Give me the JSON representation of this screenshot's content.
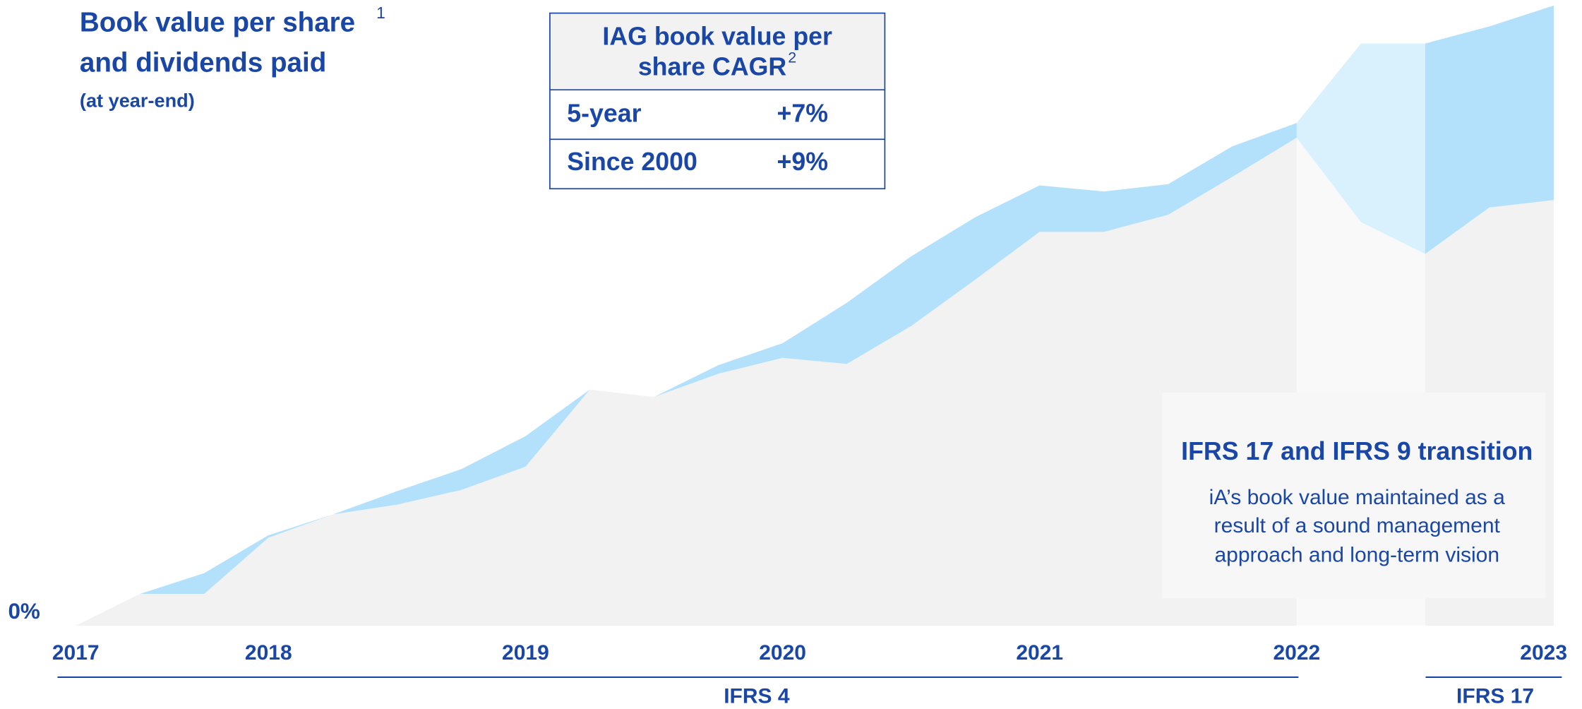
{
  "chart_data": {
    "type": "area",
    "title": "Book value per share",
    "title_note": "1",
    "title_line2": "and dividends paid",
    "subtitle": "(at year-end)",
    "categories": [
      "2017",
      null,
      null,
      "2018",
      null,
      null,
      null,
      "2019",
      null,
      null,
      null,
      "2020",
      null,
      null,
      null,
      "2021",
      null,
      null,
      null,
      "2022",
      null,
      null,
      null,
      "2023"
    ],
    "series": [
      {
        "color": "#f2f2f2",
        "values": [
          0,
          2.6,
          2.6,
          7.2,
          9.1,
          9.9,
          11.1,
          13.0,
          19.3,
          18.7,
          20.6,
          21.9,
          21.4,
          24.5,
          28.3,
          32.2,
          32.2,
          33.6,
          36.7,
          39.9,
          33.0,
          30.4,
          34.2,
          34.8
        ]
      },
      {
        "color": "#b3e1fb",
        "values": [
          0,
          0,
          1.7,
          0.2,
          0,
          1.1,
          1.7,
          2.5,
          0,
          0,
          0.7,
          1.2,
          5.0,
          5.7,
          5.1,
          3.8,
          3.3,
          2.5,
          2.5,
          1.2,
          14.6,
          17.2,
          14.8,
          15.9
        ]
      }
    ],
    "stacked": true,
    "ylim": [
      0,
      50
    ],
    "yticks": [
      {
        "value": 0,
        "label": "0%"
      }
    ],
    "table": {
      "header": [
        "IAG book value per",
        "share CAGR"
      ],
      "header_note": "2",
      "rows": [
        [
          "5-year",
          "+7%"
        ],
        [
          "Since 2000",
          "+9%"
        ]
      ]
    },
    "annotation": {
      "title": "IFRS 17 and IFRS 9 transition",
      "lines": [
        "iA’s book value maintained as a",
        "result of a sound management",
        "approach and long-term vision"
      ]
    },
    "periods": [
      "IFRS 4",
      "IFRS 17"
    ]
  }
}
